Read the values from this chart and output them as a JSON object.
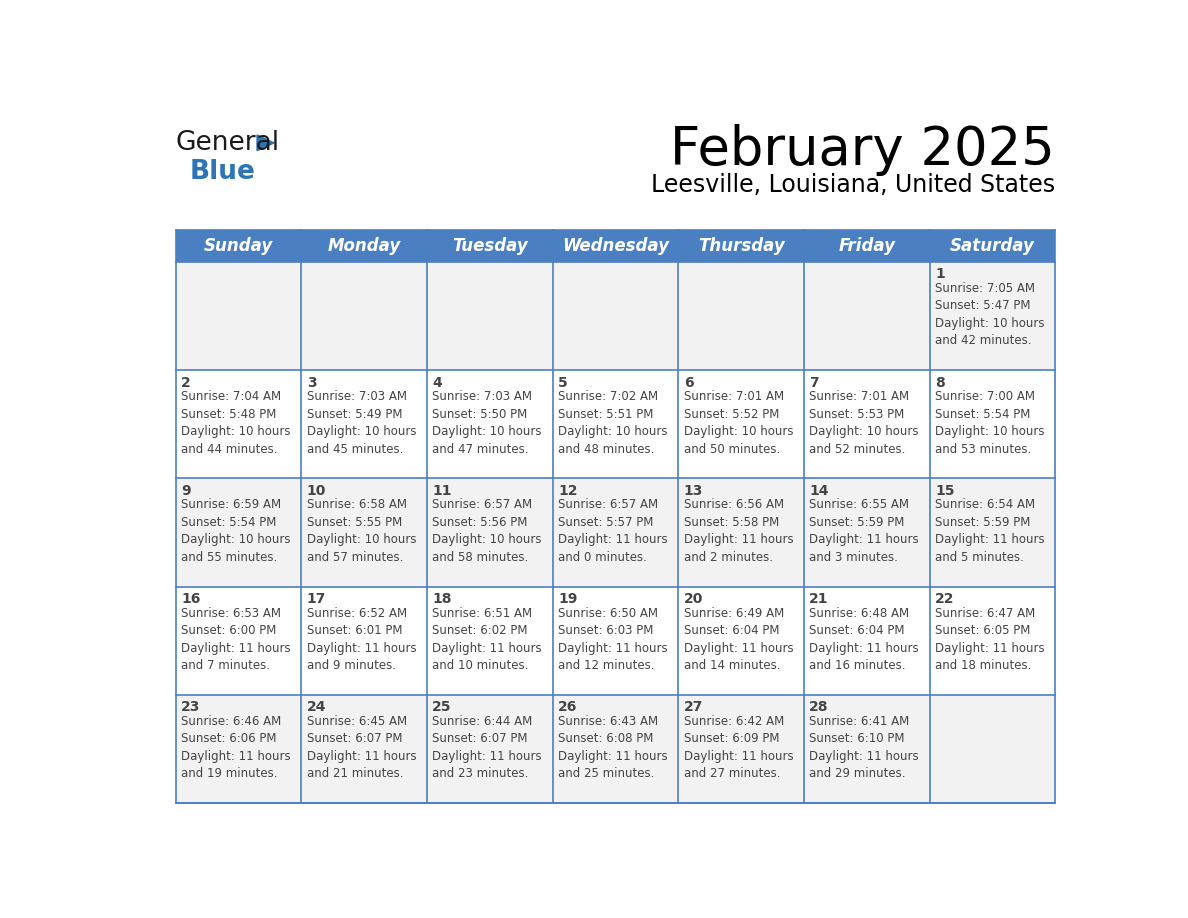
{
  "title": "February 2025",
  "subtitle": "Leesville, Louisiana, United States",
  "header_color": "#4A7FC1",
  "header_text_color": "#FFFFFF",
  "cell_bg_color": "#F2F2F2",
  "cell_bg_white": "#FFFFFF",
  "day_headers": [
    "Sunday",
    "Monday",
    "Tuesday",
    "Wednesday",
    "Thursday",
    "Friday",
    "Saturday"
  ],
  "weeks": [
    [
      {
        "day": "",
        "info": ""
      },
      {
        "day": "",
        "info": ""
      },
      {
        "day": "",
        "info": ""
      },
      {
        "day": "",
        "info": ""
      },
      {
        "day": "",
        "info": ""
      },
      {
        "day": "",
        "info": ""
      },
      {
        "day": "1",
        "info": "Sunrise: 7:05 AM\nSunset: 5:47 PM\nDaylight: 10 hours\nand 42 minutes."
      }
    ],
    [
      {
        "day": "2",
        "info": "Sunrise: 7:04 AM\nSunset: 5:48 PM\nDaylight: 10 hours\nand 44 minutes."
      },
      {
        "day": "3",
        "info": "Sunrise: 7:03 AM\nSunset: 5:49 PM\nDaylight: 10 hours\nand 45 minutes."
      },
      {
        "day": "4",
        "info": "Sunrise: 7:03 AM\nSunset: 5:50 PM\nDaylight: 10 hours\nand 47 minutes."
      },
      {
        "day": "5",
        "info": "Sunrise: 7:02 AM\nSunset: 5:51 PM\nDaylight: 10 hours\nand 48 minutes."
      },
      {
        "day": "6",
        "info": "Sunrise: 7:01 AM\nSunset: 5:52 PM\nDaylight: 10 hours\nand 50 minutes."
      },
      {
        "day": "7",
        "info": "Sunrise: 7:01 AM\nSunset: 5:53 PM\nDaylight: 10 hours\nand 52 minutes."
      },
      {
        "day": "8",
        "info": "Sunrise: 7:00 AM\nSunset: 5:54 PM\nDaylight: 10 hours\nand 53 minutes."
      }
    ],
    [
      {
        "day": "9",
        "info": "Sunrise: 6:59 AM\nSunset: 5:54 PM\nDaylight: 10 hours\nand 55 minutes."
      },
      {
        "day": "10",
        "info": "Sunrise: 6:58 AM\nSunset: 5:55 PM\nDaylight: 10 hours\nand 57 minutes."
      },
      {
        "day": "11",
        "info": "Sunrise: 6:57 AM\nSunset: 5:56 PM\nDaylight: 10 hours\nand 58 minutes."
      },
      {
        "day": "12",
        "info": "Sunrise: 6:57 AM\nSunset: 5:57 PM\nDaylight: 11 hours\nand 0 minutes."
      },
      {
        "day": "13",
        "info": "Sunrise: 6:56 AM\nSunset: 5:58 PM\nDaylight: 11 hours\nand 2 minutes."
      },
      {
        "day": "14",
        "info": "Sunrise: 6:55 AM\nSunset: 5:59 PM\nDaylight: 11 hours\nand 3 minutes."
      },
      {
        "day": "15",
        "info": "Sunrise: 6:54 AM\nSunset: 5:59 PM\nDaylight: 11 hours\nand 5 minutes."
      }
    ],
    [
      {
        "day": "16",
        "info": "Sunrise: 6:53 AM\nSunset: 6:00 PM\nDaylight: 11 hours\nand 7 minutes."
      },
      {
        "day": "17",
        "info": "Sunrise: 6:52 AM\nSunset: 6:01 PM\nDaylight: 11 hours\nand 9 minutes."
      },
      {
        "day": "18",
        "info": "Sunrise: 6:51 AM\nSunset: 6:02 PM\nDaylight: 11 hours\nand 10 minutes."
      },
      {
        "day": "19",
        "info": "Sunrise: 6:50 AM\nSunset: 6:03 PM\nDaylight: 11 hours\nand 12 minutes."
      },
      {
        "day": "20",
        "info": "Sunrise: 6:49 AM\nSunset: 6:04 PM\nDaylight: 11 hours\nand 14 minutes."
      },
      {
        "day": "21",
        "info": "Sunrise: 6:48 AM\nSunset: 6:04 PM\nDaylight: 11 hours\nand 16 minutes."
      },
      {
        "day": "22",
        "info": "Sunrise: 6:47 AM\nSunset: 6:05 PM\nDaylight: 11 hours\nand 18 minutes."
      }
    ],
    [
      {
        "day": "23",
        "info": "Sunrise: 6:46 AM\nSunset: 6:06 PM\nDaylight: 11 hours\nand 19 minutes."
      },
      {
        "day": "24",
        "info": "Sunrise: 6:45 AM\nSunset: 6:07 PM\nDaylight: 11 hours\nand 21 minutes."
      },
      {
        "day": "25",
        "info": "Sunrise: 6:44 AM\nSunset: 6:07 PM\nDaylight: 11 hours\nand 23 minutes."
      },
      {
        "day": "26",
        "info": "Sunrise: 6:43 AM\nSunset: 6:08 PM\nDaylight: 11 hours\nand 25 minutes."
      },
      {
        "day": "27",
        "info": "Sunrise: 6:42 AM\nSunset: 6:09 PM\nDaylight: 11 hours\nand 27 minutes."
      },
      {
        "day": "28",
        "info": "Sunrise: 6:41 AM\nSunset: 6:10 PM\nDaylight: 11 hours\nand 29 minutes."
      },
      {
        "day": "",
        "info": ""
      }
    ]
  ],
  "logo_color_general": "#1a1a1a",
  "logo_color_blue": "#2E75B6",
  "logo_triangle_color": "#2E75B6",
  "title_fontsize": 38,
  "subtitle_fontsize": 17,
  "day_header_fontsize": 12,
  "day_num_fontsize": 10,
  "cell_text_fontsize": 8.5,
  "line_color": "#4A7FC1",
  "text_color": "#444444"
}
